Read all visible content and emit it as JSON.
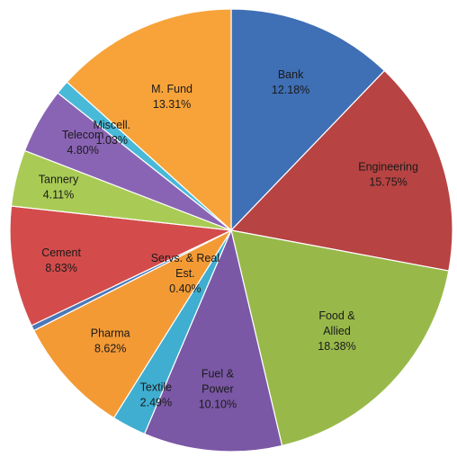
{
  "chart_data": {
    "type": "pie",
    "slices": [
      {
        "name": "Bank",
        "value": 12.18,
        "label_lines": [
          "Bank",
          "12.18%"
        ],
        "color": "#3f6fb5"
      },
      {
        "name": "Engineering",
        "value": 15.75,
        "label_lines": [
          "Engineering",
          "15.75%"
        ],
        "color": "#b84343"
      },
      {
        "name": "Food & Allied",
        "value": 18.38,
        "label_lines": [
          "Food &",
          "Allied",
          "18.38%"
        ],
        "color": "#98b94a"
      },
      {
        "name": "Fuel & Power",
        "value": 10.1,
        "label_lines": [
          "Fuel &",
          "Power",
          "10.10%"
        ],
        "color": "#7a58a5"
      },
      {
        "name": "Textile",
        "value": 2.49,
        "label_lines": [
          "Textile",
          "2.49%"
        ],
        "color": "#3faed0"
      },
      {
        "name": "Pharma",
        "value": 8.62,
        "label_lines": [
          "Pharma",
          "8.62%"
        ],
        "color": "#f39a35"
      },
      {
        "name": "Servs. & Real Est.",
        "value": 0.4,
        "label_lines": [
          "Servs. & Real",
          "Est.",
          "0.40%"
        ],
        "color": "#4b78b8"
      },
      {
        "name": "Cement",
        "value": 8.83,
        "label_lines": [
          "Cement",
          "8.83%"
        ],
        "color": "#d44b4b"
      },
      {
        "name": "Tannery",
        "value": 4.11,
        "label_lines": [
          "Tannery",
          "4.11%"
        ],
        "color": "#a9cb55"
      },
      {
        "name": "Telecom",
        "value": 4.8,
        "label_lines": [
          "Telecom",
          "4.80%"
        ],
        "color": "#8a64b4"
      },
      {
        "name": "Miscell.",
        "value": 1.03,
        "label_lines": [
          "Miscell.",
          "1.03%"
        ],
        "color": "#49b9d8"
      },
      {
        "name": "M. Fund",
        "value": 13.31,
        "label_lines": [
          "M. Fund",
          "13.31%"
        ],
        "color": "#f7a33a"
      }
    ],
    "start_angle_deg": 0,
    "direction": "clockwise",
    "legend": "none",
    "title": ""
  }
}
